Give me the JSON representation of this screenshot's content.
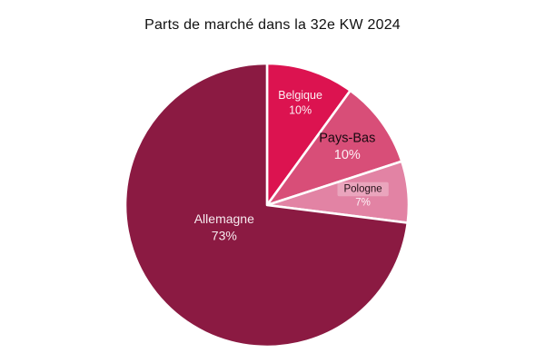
{
  "page": {
    "background": "#ffffff"
  },
  "chart_data": {
    "type": "pie",
    "title": "Parts de marché dans la 32e KW 2024",
    "unit": "percent",
    "categories": [
      "Belgique",
      "Pays-Bas",
      "Pologne",
      "Allemagne"
    ],
    "values": [
      10,
      10,
      7,
      73
    ],
    "start_angle_deg": 0,
    "direction": "clockwise",
    "legend": "none",
    "labels": "inside",
    "slice_gap_color": "#ffffff",
    "slices": [
      {
        "label": "Belgique",
        "value": 10,
        "value_label": "10%",
        "color": "#dc1350",
        "name_color": "#fcf0f4",
        "pct_color": "#fcf0f4",
        "label_r_frac": 0.76,
        "label_size": 12.5,
        "highlighted": false
      },
      {
        "label": "Pays-Bas",
        "value": 10,
        "value_label": "10%",
        "color": "#d84e78",
        "name_color": "#170910",
        "pct_color": "#fdeff4",
        "label_r_frac": 0.7,
        "label_size": 14.5,
        "highlighted": false
      },
      {
        "label": "Pologne",
        "value": 7,
        "value_label": "7%",
        "color": "#e283a4",
        "name_color": "#241018",
        "pct_color": "#fdf2f6",
        "label_r_frac": 0.68,
        "label_size": 11.5,
        "highlighted": true
      },
      {
        "label": "Allemagne",
        "value": 73,
        "value_label": "73%",
        "color": "#8b1a42",
        "name_color": "#f7eaef",
        "pct_color": "#f7eaef",
        "label_r_frac": 0.34,
        "label_angle_deg": 242.8,
        "label_size": 14,
        "highlighted": false
      }
    ]
  }
}
